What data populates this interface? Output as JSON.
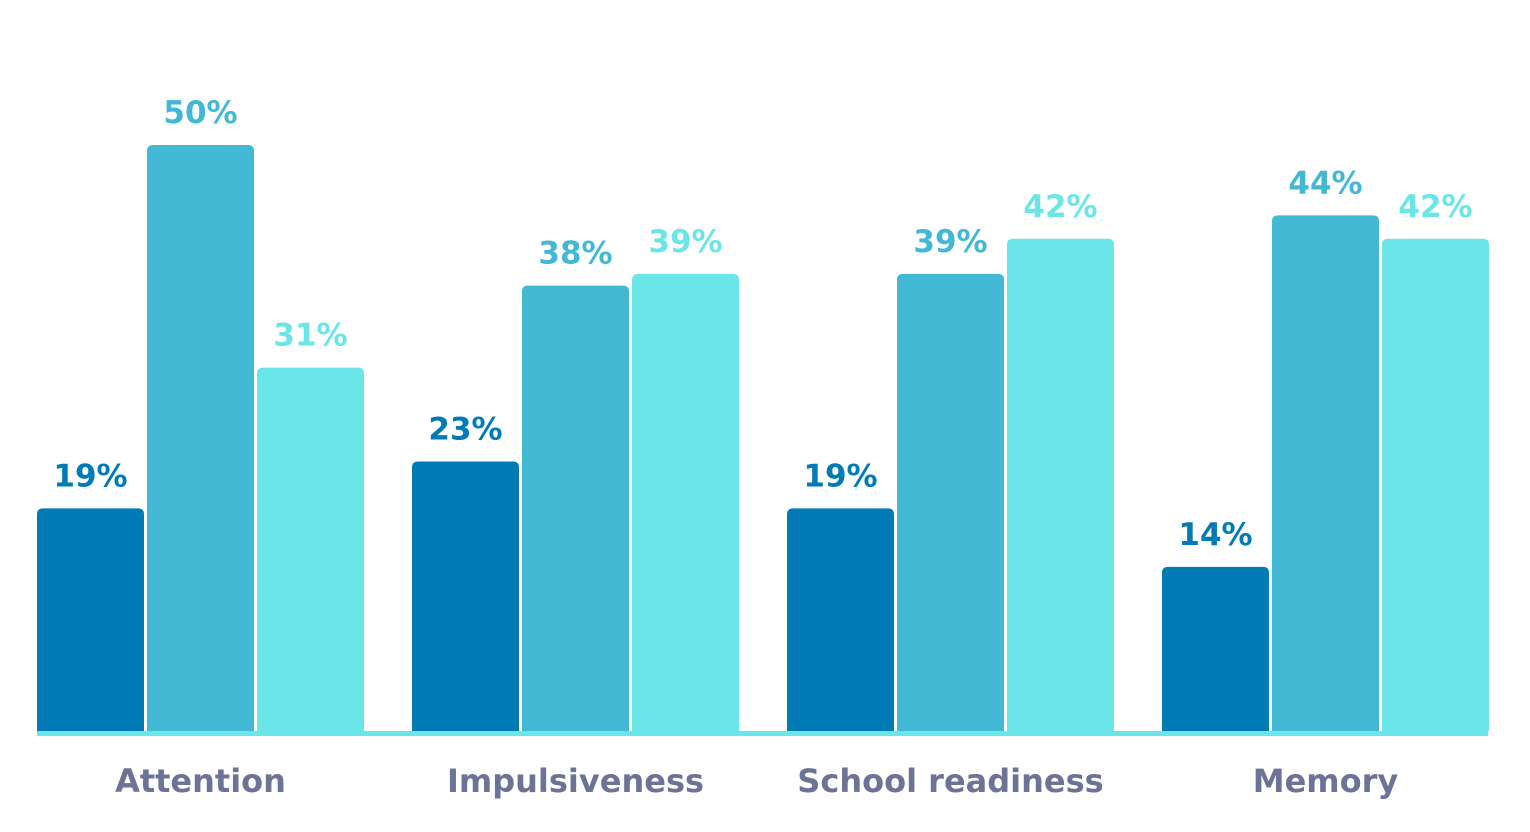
{
  "chart_data": {
    "type": "bar",
    "categories": [
      "Attention",
      "Impulsiveness",
      "School readiness",
      "Memory"
    ],
    "series": [
      {
        "values": [
          19,
          23,
          19,
          14
        ]
      },
      {
        "values": [
          50,
          38,
          39,
          44
        ]
      },
      {
        "values": [
          31,
          39,
          42,
          42
        ]
      }
    ],
    "value_labels": [
      [
        "19%",
        "23%",
        "19%",
        "14%"
      ],
      [
        "50%",
        "38%",
        "39%",
        "44%"
      ],
      [
        "31%",
        "39%",
        "42%",
        "42%"
      ]
    ],
    "colors": [
      "#007bb6",
      "#42b8d4",
      "#6ae6e8"
    ],
    "baseline_color": "#6ae6e8",
    "label_color": "#6b7396",
    "ylim": [
      0,
      50
    ],
    "grid": false,
    "legend": "none"
  }
}
